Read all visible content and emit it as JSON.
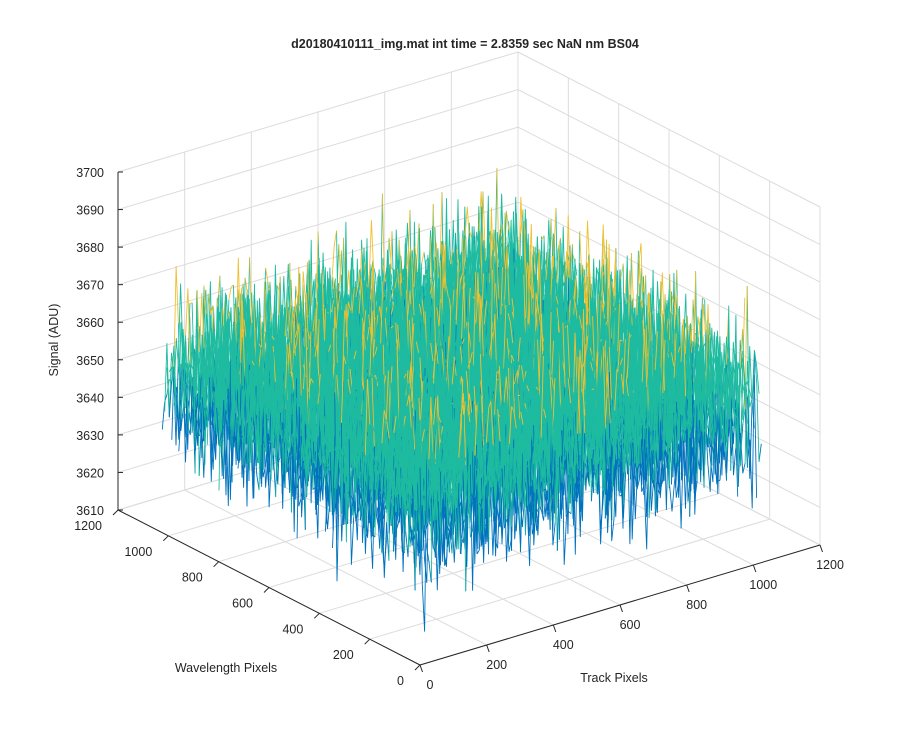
{
  "chart_data": {
    "type": "surface",
    "title": "d20180410111_img.mat int time = 2.8359 sec  NaN nm BS04",
    "xlabel": "Track Pixels",
    "ylabel": "Wavelength Pixels",
    "zlabel": "Signal (ADU)",
    "xlim": [
      0,
      1200
    ],
    "ylim": [
      0,
      1200
    ],
    "zlim": [
      3610,
      3700
    ],
    "x_ticks": [
      "0",
      "200",
      "400",
      "600",
      "800",
      "1000",
      "1200"
    ],
    "y_ticks": [
      "0",
      "200",
      "400",
      "600",
      "800",
      "1000",
      "1200"
    ],
    "z_ticks": [
      "3610",
      "3620",
      "3630",
      "3640",
      "3650",
      "3660",
      "3670",
      "3680",
      "3690",
      "3700"
    ],
    "grid": true,
    "surface_extent": {
      "x": [
        0,
        1024
      ],
      "y": [
        0,
        1024
      ]
    },
    "signal_mean": 3652,
    "signal_range": [
      3615,
      3692
    ],
    "colors": {
      "low": "#0072bd",
      "mid": "#1ebba0",
      "high": "#f0c030"
    }
  }
}
